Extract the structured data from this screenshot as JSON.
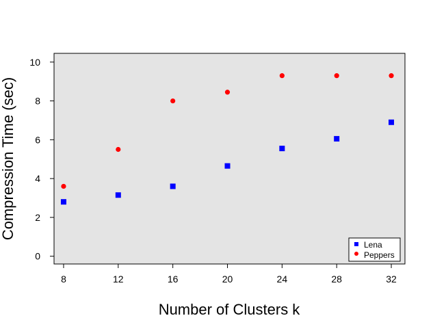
{
  "chart_data": {
    "type": "scatter",
    "title": "",
    "xlabel": "Number of Clusters k",
    "ylabel": "Compression Time (sec)",
    "x": [
      8,
      12,
      16,
      20,
      24,
      28,
      32
    ],
    "xticks": [
      "8",
      "12",
      "16",
      "20",
      "24",
      "28",
      "32"
    ],
    "yticks": [
      "0",
      "2",
      "4",
      "6",
      "8",
      "10"
    ],
    "xlim": [
      7.3,
      33.0
    ],
    "ylim": [
      -0.4,
      10.45
    ],
    "grid": false,
    "background": "#e4e4e4",
    "legend_position": "bottom-right",
    "series": [
      {
        "name": "Lena",
        "marker": "square",
        "color": "#0000ff",
        "values": [
          2.8,
          3.15,
          3.6,
          4.65,
          5.55,
          6.05,
          6.9
        ]
      },
      {
        "name": "Peppers",
        "marker": "circle",
        "color": "#ff0000",
        "values": [
          3.6,
          5.5,
          8.0,
          8.45,
          9.3,
          9.3,
          9.3
        ]
      }
    ]
  }
}
